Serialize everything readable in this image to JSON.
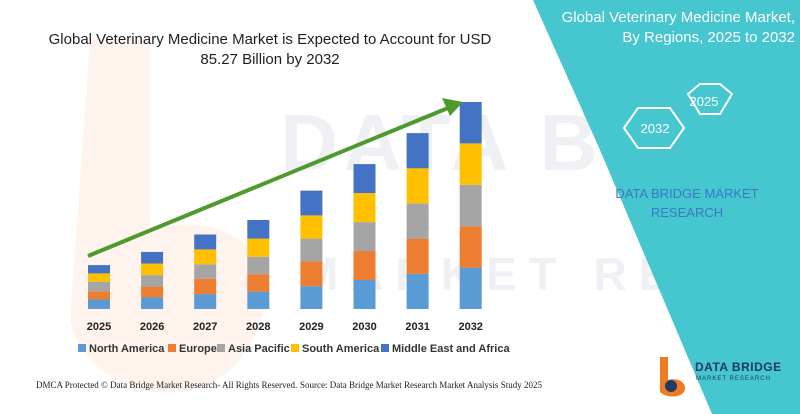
{
  "chart_title": "Global Veterinary Medicine Market is Expected to Account for USD 85.27 Billion by 2032",
  "side_title": "Global Veterinary Medicine Market, By Regions, 2025 to 2032",
  "hex_labels": [
    "2025",
    "2032"
  ],
  "side_brand": "DATA BRIDGE MARKET RESEARCH",
  "footer": {
    "left": "DMCA Protected © Data Bridge Market Research- All Rights Reserved.",
    "right": "Source: Data Bridge Market Research Market Analysis Study 2025"
  },
  "logo": {
    "name": "DATA BRIDGE",
    "tagline": "MARKET RESEARCH"
  },
  "colors": {
    "panel": "#46c6cf",
    "arrow": "#4e9a2c",
    "north_america": "#5b9bd5",
    "europe": "#ed7d31",
    "asia_pacific": "#a5a5a5",
    "south_america": "#ffc000",
    "middle_east_africa": "#4472c4"
  },
  "chart_data": {
    "type": "bar",
    "stacked": true,
    "categories": [
      "2025",
      "2026",
      "2027",
      "2028",
      "2029",
      "2030",
      "2031",
      "2032"
    ],
    "series": [
      {
        "name": "North America",
        "values": [
          2.3,
          2.8,
          3.6,
          4.2,
          5.5,
          7.0,
          8.5,
          10.0
        ]
      },
      {
        "name": "Europe",
        "values": [
          2.0,
          2.6,
          3.7,
          4.2,
          6.0,
          7.0,
          8.5,
          10.0
        ]
      },
      {
        "name": "Asia Pacific",
        "values": [
          2.3,
          2.8,
          3.5,
          4.2,
          5.5,
          7.0,
          8.5,
          10.0
        ]
      },
      {
        "name": "South America",
        "values": [
          2.0,
          2.8,
          3.6,
          4.4,
          5.6,
          7.0,
          8.5,
          10.0
        ]
      },
      {
        "name": "Middle East and Africa",
        "values": [
          2.0,
          2.8,
          3.6,
          4.5,
          6.0,
          7.0,
          8.5,
          10.0
        ]
      }
    ],
    "ylim": [
      0,
      50
    ],
    "legend_position": "bottom",
    "grid": false
  }
}
